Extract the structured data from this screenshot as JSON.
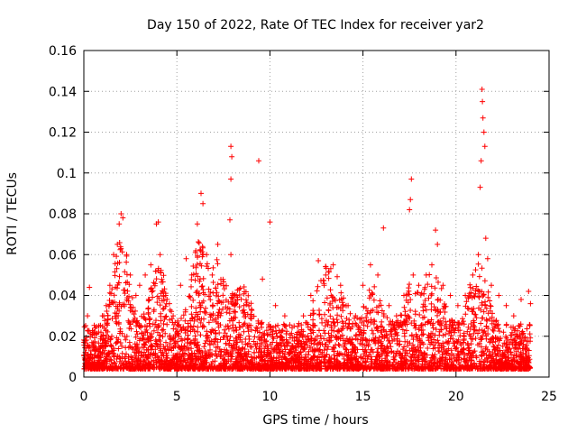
{
  "chart_data": {
    "type": "scatter",
    "title": "Day 150 of 2022, Rate Of TEC Index for receiver yar2",
    "xlabel": "GPS time / hours",
    "ylabel": "ROTI / TECUs",
    "xlim": [
      0,
      25
    ],
    "ylim": [
      0,
      0.16
    ],
    "xticks": [
      0,
      5,
      10,
      15,
      20,
      25
    ],
    "yticks": [
      0,
      0.02,
      0.04,
      0.06,
      0.08,
      0.1,
      0.12,
      0.14,
      0.16
    ],
    "xtick_labels": [
      "0",
      "5",
      "10",
      "15",
      "20",
      "25"
    ],
    "ytick_labels": [
      "0",
      "0.02",
      "0.04",
      "0.06",
      "0.08",
      "0.1",
      "0.12",
      "0.14",
      "0.16"
    ],
    "grid": true,
    "marker": "plus",
    "color": "#ff0000",
    "series": [
      {
        "points": [
          [
            0.1,
            0.012
          ],
          [
            0.2,
            0.03
          ],
          [
            0.3,
            0.044
          ],
          [
            0.5,
            0.015
          ],
          [
            0.8,
            0.025
          ],
          [
            1.0,
            0.03
          ],
          [
            1.2,
            0.035
          ],
          [
            1.4,
            0.045
          ],
          [
            1.6,
            0.06
          ],
          [
            1.8,
            0.065
          ],
          [
            1.9,
            0.075
          ],
          [
            2.0,
            0.08
          ],
          [
            2.1,
            0.078
          ],
          [
            2.3,
            0.06
          ],
          [
            2.5,
            0.05
          ],
          [
            2.8,
            0.04
          ],
          [
            3.0,
            0.045
          ],
          [
            3.3,
            0.05
          ],
          [
            3.6,
            0.055
          ],
          [
            3.9,
            0.075
          ],
          [
            4.0,
            0.076
          ],
          [
            4.1,
            0.06
          ],
          [
            4.4,
            0.04
          ],
          [
            4.8,
            0.03
          ],
          [
            5.2,
            0.045
          ],
          [
            5.5,
            0.058
          ],
          [
            5.8,
            0.05
          ],
          [
            6.1,
            0.075
          ],
          [
            6.3,
            0.09
          ],
          [
            6.4,
            0.085
          ],
          [
            6.6,
            0.06
          ],
          [
            6.9,
            0.05
          ],
          [
            7.2,
            0.065
          ],
          [
            7.5,
            0.045
          ],
          [
            7.9,
            0.113
          ],
          [
            7.95,
            0.108
          ],
          [
            7.9,
            0.097
          ],
          [
            7.85,
            0.077
          ],
          [
            7.9,
            0.06
          ],
          [
            8.2,
            0.04
          ],
          [
            8.6,
            0.035
          ],
          [
            9.0,
            0.03
          ],
          [
            9.4,
            0.106
          ],
          [
            9.6,
            0.048
          ],
          [
            10.0,
            0.076
          ],
          [
            10.3,
            0.035
          ],
          [
            10.8,
            0.03
          ],
          [
            11.3,
            0.025
          ],
          [
            11.8,
            0.03
          ],
          [
            12.2,
            0.04
          ],
          [
            12.6,
            0.057
          ],
          [
            13.0,
            0.05
          ],
          [
            13.4,
            0.055
          ],
          [
            13.8,
            0.045
          ],
          [
            14.2,
            0.035
          ],
          [
            14.6,
            0.03
          ],
          [
            15.0,
            0.045
          ],
          [
            15.4,
            0.055
          ],
          [
            15.8,
            0.05
          ],
          [
            16.1,
            0.073
          ],
          [
            16.4,
            0.035
          ],
          [
            16.8,
            0.03
          ],
          [
            17.2,
            0.04
          ],
          [
            17.5,
            0.082
          ],
          [
            17.6,
            0.097
          ],
          [
            17.55,
            0.087
          ],
          [
            17.7,
            0.05
          ],
          [
            18.0,
            0.045
          ],
          [
            18.4,
            0.05
          ],
          [
            18.7,
            0.055
          ],
          [
            18.9,
            0.072
          ],
          [
            19.0,
            0.065
          ],
          [
            19.3,
            0.045
          ],
          [
            19.7,
            0.04
          ],
          [
            20.1,
            0.035
          ],
          [
            20.5,
            0.04
          ],
          [
            20.9,
            0.05
          ],
          [
            21.2,
            0.06
          ],
          [
            21.3,
            0.093
          ],
          [
            21.35,
            0.106
          ],
          [
            21.4,
            0.141
          ],
          [
            21.42,
            0.135
          ],
          [
            21.45,
            0.127
          ],
          [
            21.5,
            0.12
          ],
          [
            21.55,
            0.113
          ],
          [
            21.6,
            0.068
          ],
          [
            21.7,
            0.058
          ],
          [
            21.9,
            0.045
          ],
          [
            22.3,
            0.04
          ],
          [
            22.7,
            0.035
          ],
          [
            23.1,
            0.03
          ],
          [
            23.5,
            0.038
          ],
          [
            23.9,
            0.042
          ],
          [
            24.0,
            0.036
          ]
        ]
      }
    ]
  }
}
